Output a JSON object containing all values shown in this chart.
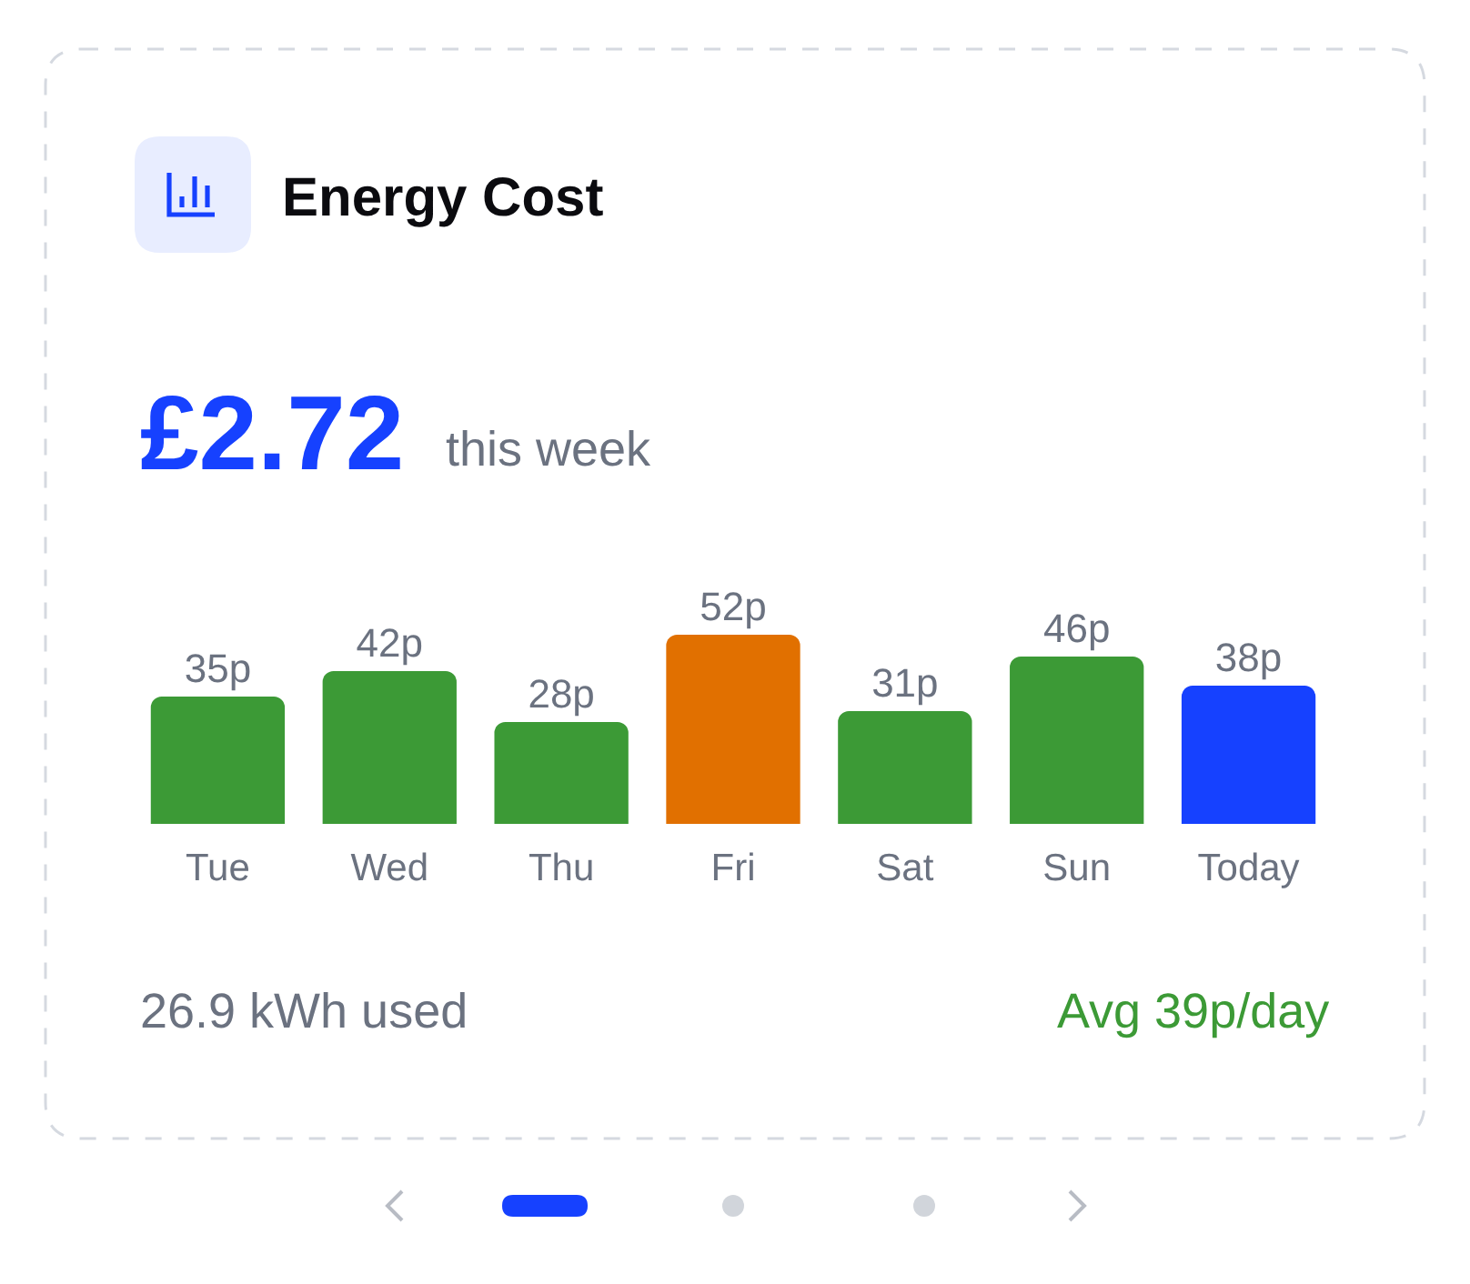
{
  "chart_data": {
    "type": "bar",
    "title": "Energy Cost",
    "categories": [
      "Tue",
      "Wed",
      "Thu",
      "Fri",
      "Sat",
      "Sun",
      "Today"
    ],
    "values": [
      35,
      42,
      28,
      52,
      31,
      46,
      38
    ],
    "colors": [
      "#3c9a36",
      "#3c9a36",
      "#3c9a36",
      "#e17000",
      "#3c9a36",
      "#3c9a36",
      "#1641ff"
    ],
    "value_labels": [
      "35p",
      "42p",
      "28p",
      "52p",
      "31p",
      "46p",
      "38p"
    ],
    "annotations": [
      "£2.72",
      "this week",
      "26.9 kWh used",
      "Avg 39p/day"
    ],
    "tick_labels": "x"
  }
}
